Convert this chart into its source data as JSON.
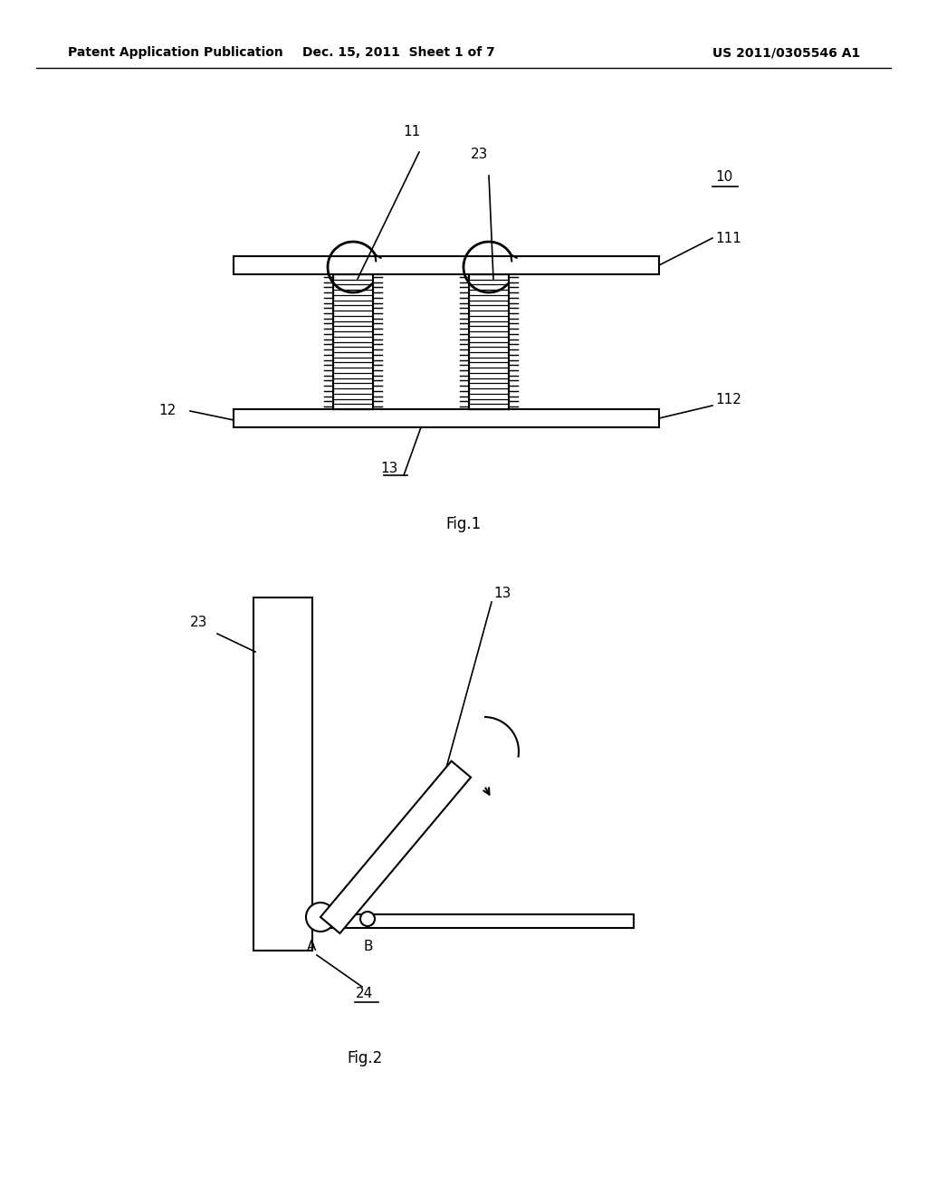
{
  "bg_color": "#ffffff",
  "header_left": "Patent Application Publication",
  "header_mid": "Dec. 15, 2011  Sheet 1 of 7",
  "header_right": "US 2011/0305546 A1",
  "fig1_caption": "Fig.1",
  "fig2_caption": "Fig.2",
  "line_color": "#000000",
  "lw": 1.5
}
